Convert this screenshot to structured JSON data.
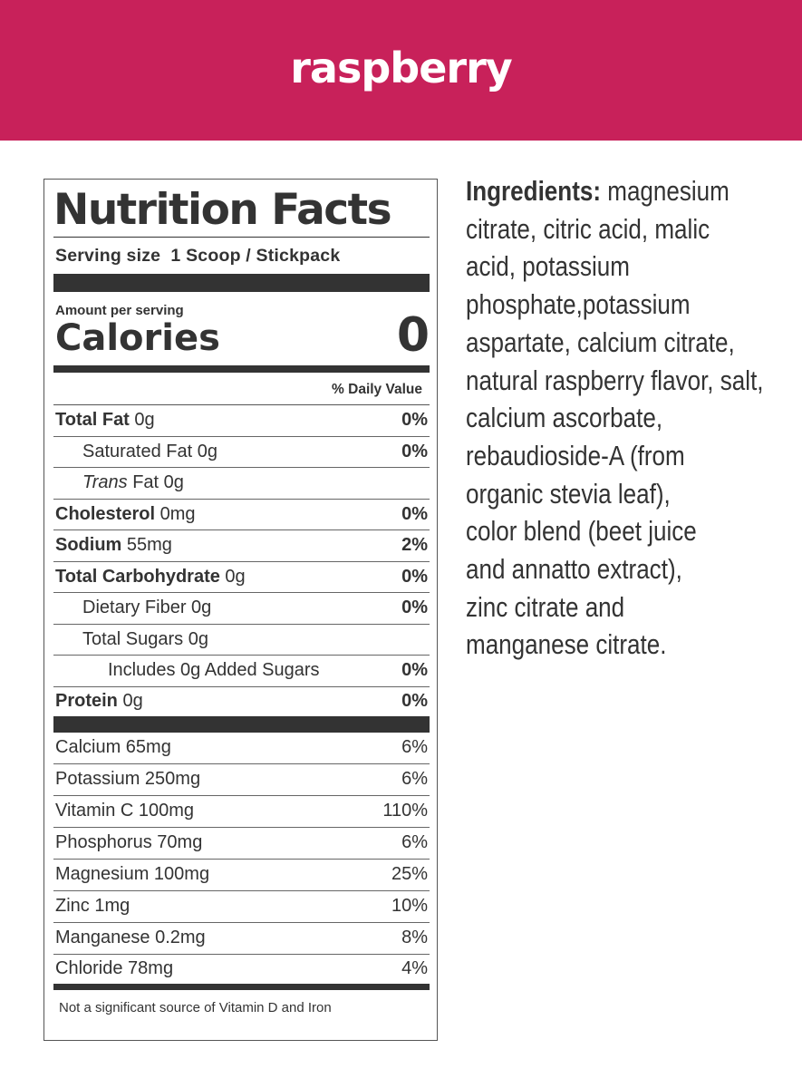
{
  "header": {
    "title": "raspberry",
    "color": "#c8215a"
  },
  "label": {
    "title": "Nutrition Facts",
    "serving": "Serving size  1 Scoop / Stickpack",
    "amount": "Amount per serving",
    "calories_label": "Calories",
    "calories_value": "0",
    "daily_value_header": "% Daily Value",
    "nutrients": [
      {
        "name": "Total Fat",
        "amount": " 0g",
        "dv": "0%",
        "bold": true,
        "indent": 0
      },
      {
        "name": "",
        "amount": "Saturated Fat 0g",
        "dv": "0%",
        "bold": false,
        "indent": 1
      },
      {
        "name": "",
        "amount": "Trans",
        "amount2": " Fat 0g",
        "dv": "",
        "bold": false,
        "indent": 1
      },
      {
        "name": "Cholesterol",
        "amount": " 0mg",
        "dv": "0%",
        "bold": true,
        "indent": 0
      },
      {
        "name": "Sodium",
        "amount": " 55mg",
        "dv": "2%",
        "bold": true,
        "indent": 0
      },
      {
        "name": "Total Carbohydrate",
        "amount": " 0g",
        "dv": "0%",
        "bold": true,
        "indent": 0
      },
      {
        "name": "",
        "amount": "Dietary Fiber 0g",
        "dv": "0%",
        "bold": false,
        "indent": 1
      },
      {
        "name": "",
        "amount": "Total Sugars 0g",
        "dv": "",
        "bold": false,
        "indent": 1
      },
      {
        "name": "",
        "amount": "Includes 0g Added Sugars",
        "dv": "0%",
        "bold": false,
        "indent": 2
      },
      {
        "name": "Protein",
        "amount": " 0g",
        "dv": "0%",
        "bold": true,
        "indent": 0
      }
    ],
    "minerals": [
      {
        "name": "Calcium 65mg",
        "dv": "6%"
      },
      {
        "name": "Potassium 250mg",
        "dv": "6%"
      },
      {
        "name": "Vitamin C 100mg",
        "dv": "110%"
      },
      {
        "name": "Phosphorus 70mg",
        "dv": "6%"
      },
      {
        "name": "Magnesium 100mg",
        "dv": "25%"
      },
      {
        "name": "Zinc 1mg",
        "dv": "10%"
      },
      {
        "name": "Manganese 0.2mg",
        "dv": "8%"
      },
      {
        "name": "Chloride 78mg",
        "dv": "4%"
      }
    ],
    "footnote": "Not a significant source of Vitamin D and Iron"
  },
  "ingredients": {
    "label": "Ingredients:",
    "lines": [
      " magnesium",
      "citrate, citric acid, malic",
      "acid, potassium",
      "phosphate,potassium",
      "aspartate, calcium citrate,",
      "natural raspberry flavor, salt,",
      "calcium ascorbate,",
      "rebaudioside-A (from",
      "organic stevia leaf),",
      "color blend (beet juice",
      "and annatto extract),",
      "zinc citrate and",
      "manganese citrate."
    ]
  }
}
